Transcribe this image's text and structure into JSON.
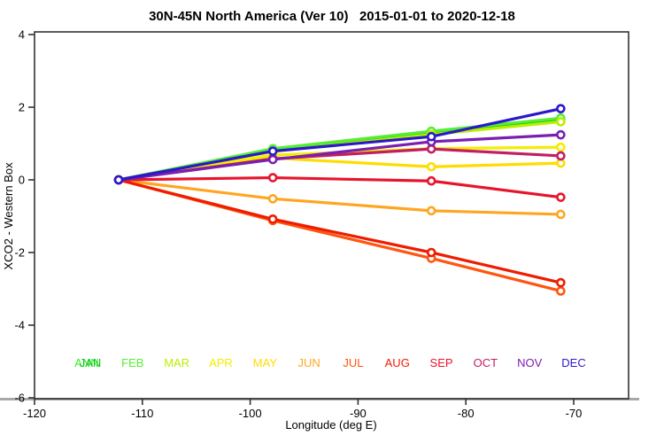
{
  "title": "30N-45N North America (Ver 10)   2015-01-01 to 2020-12-18",
  "chart_data": {
    "type": "line",
    "title": "30N-45N North America (Ver 10)   2015-01-01 to 2020-12-18",
    "xlabel": "Longitude (deg E)",
    "ylabel": "XCO2 - Western Box",
    "xlim": [
      -120,
      -65
    ],
    "ylim": [
      -6,
      4
    ],
    "xticks": [
      -120,
      -110,
      -100,
      -90,
      -80,
      -70
    ],
    "yticks": [
      -6,
      -4,
      -2,
      0,
      2,
      4
    ],
    "grid": false,
    "legend_position": "bottom-inside-row",
    "x": [
      -112.2,
      -97.9,
      -83.2,
      -71.2
    ],
    "series": [
      {
        "name": "ANN",
        "color": "#33ee22",
        "legend_slot": 0,
        "legend_dx": -2,
        "values": [
          0.0,
          0.84,
          1.32,
          1.68
        ]
      },
      {
        "name": "JAN",
        "color": "#0cc01c",
        "legend_slot": 0,
        "legend_dx": 2,
        "values": [
          0.0,
          0.82,
          1.3,
          1.65
        ]
      },
      {
        "name": "FEB",
        "color": "#55ee33",
        "legend_slot": 1,
        "legend_dx": 0,
        "values": [
          0.0,
          0.86,
          1.34,
          1.7
        ]
      },
      {
        "name": "MAR",
        "color": "#bbee00",
        "legend_slot": 2,
        "legend_dx": 0,
        "values": [
          0.0,
          0.78,
          1.25,
          1.6
        ]
      },
      {
        "name": "APR",
        "color": "#f2ee00",
        "legend_slot": 3,
        "legend_dx": 0,
        "values": [
          0.0,
          0.68,
          0.86,
          0.9
        ]
      },
      {
        "name": "MAY",
        "color": "#ffdc00",
        "legend_slot": 4,
        "legend_dx": 0,
        "values": [
          0.0,
          0.6,
          0.36,
          0.46
        ]
      },
      {
        "name": "JUN",
        "color": "#ffa520",
        "legend_slot": 5,
        "legend_dx": 0,
        "values": [
          0.0,
          -0.52,
          -0.85,
          -0.95
        ]
      },
      {
        "name": "JUL",
        "color": "#ff5510",
        "legend_slot": 6,
        "legend_dx": 0,
        "values": [
          0.0,
          -1.12,
          -2.16,
          -3.06
        ]
      },
      {
        "name": "AUG",
        "color": "#ee1c00",
        "legend_slot": 7,
        "legend_dx": 0,
        "values": [
          0.0,
          -1.08,
          -2.0,
          -2.83
        ]
      },
      {
        "name": "SEP",
        "color": "#e8142d",
        "legend_slot": 8,
        "legend_dx": 0,
        "values": [
          0.0,
          0.06,
          -0.03,
          -0.48
        ]
      },
      {
        "name": "OCT",
        "color": "#c21e64",
        "legend_slot": 9,
        "legend_dx": 0,
        "values": [
          0.0,
          0.58,
          0.85,
          0.66
        ]
      },
      {
        "name": "NOV",
        "color": "#7a1fb0",
        "legend_slot": 10,
        "legend_dx": 0,
        "values": [
          0.0,
          0.56,
          1.05,
          1.24
        ]
      },
      {
        "name": "DEC",
        "color": "#2b18cc",
        "legend_slot": 11,
        "legend_dx": 0,
        "values": [
          0.0,
          0.79,
          1.19,
          1.96
        ]
      }
    ]
  }
}
